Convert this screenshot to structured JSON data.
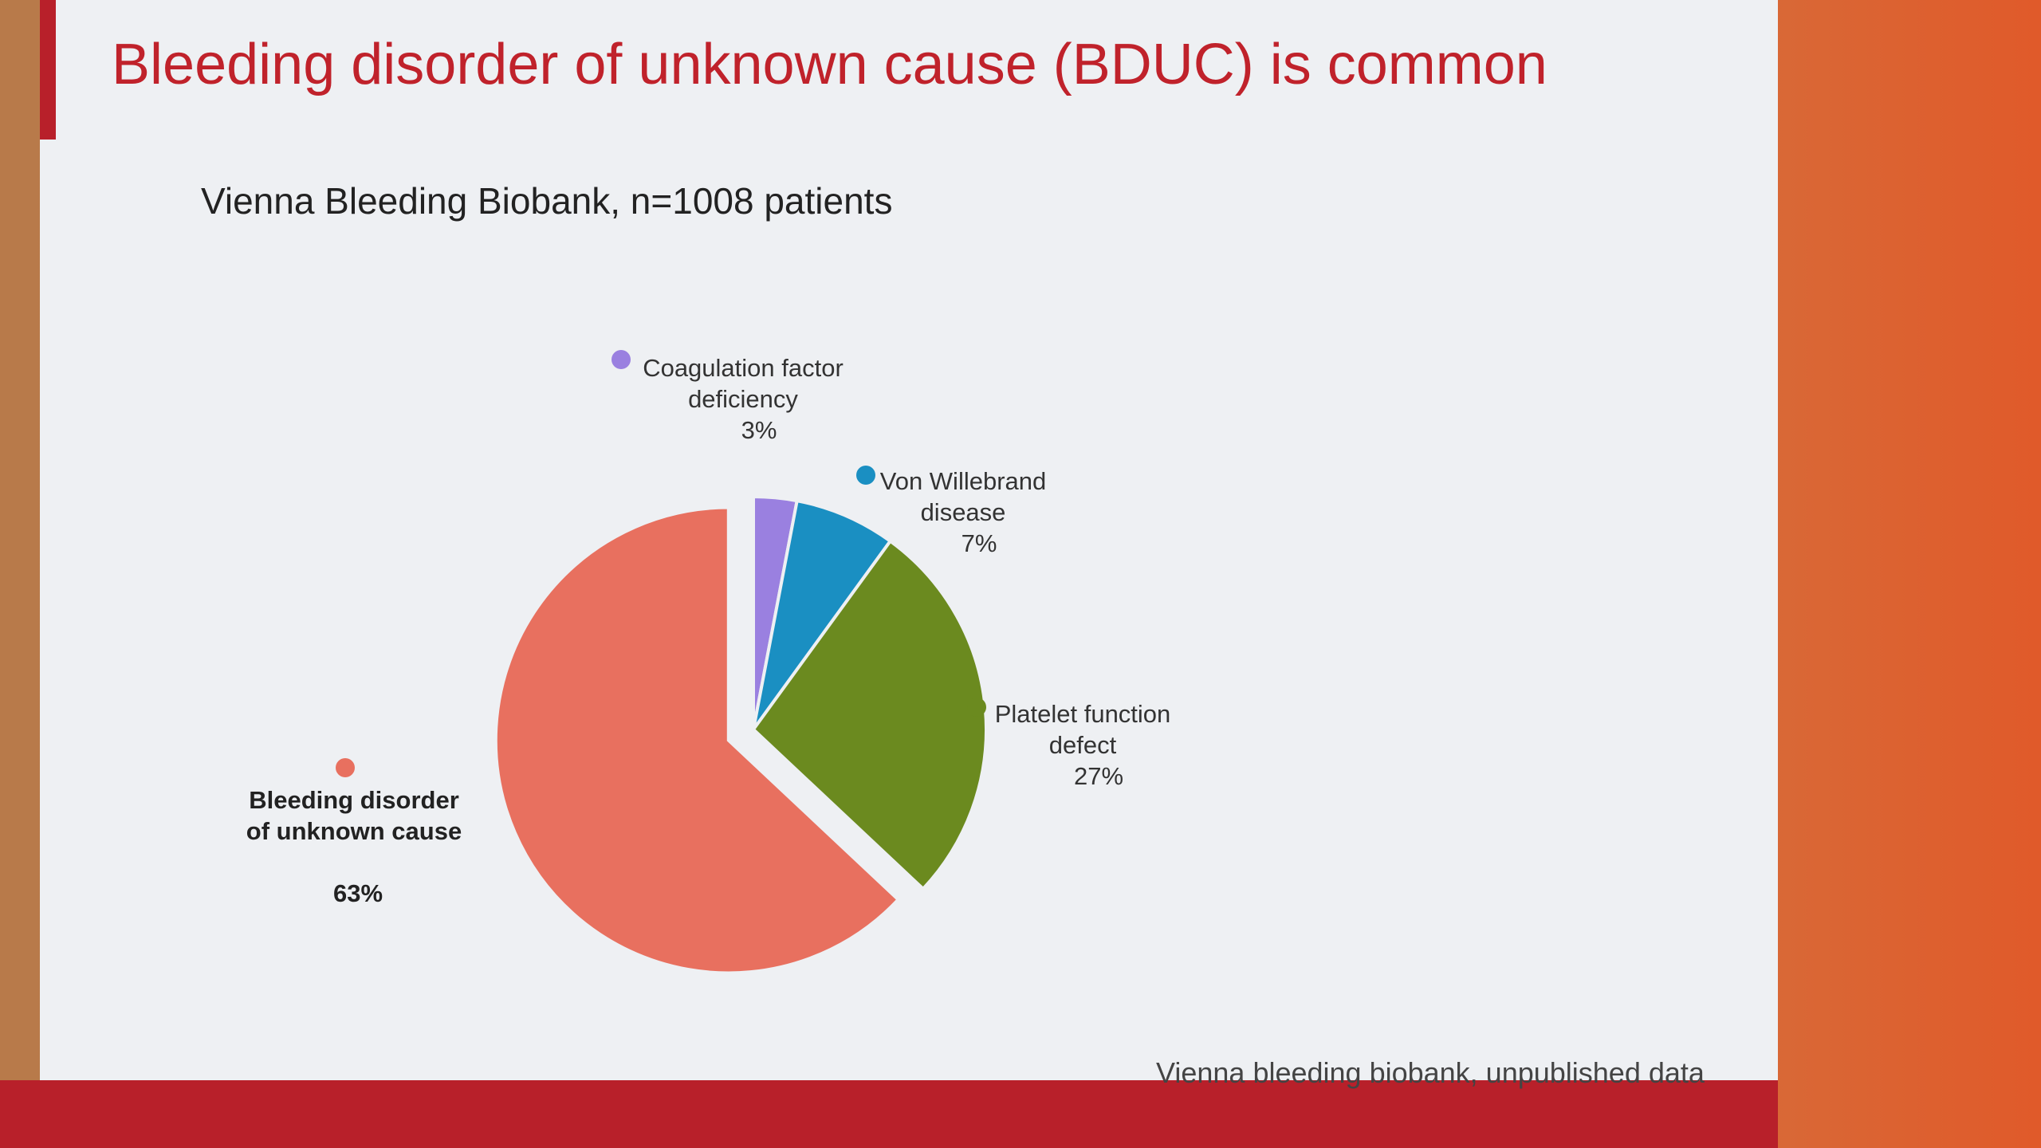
{
  "chart_data": {
    "type": "pie",
    "title": "Bleeding disorder of unknown cause (BDUC) is common",
    "subtitle": "Vienna Bleeding Biobank, n=1008 patients",
    "categories": [
      "Coagulation factor deficiency",
      "Von Willebrand disease",
      "Platelet function defect",
      "Bleeding disorder of unknown cause"
    ],
    "values": [
      3,
      7,
      27,
      63
    ],
    "value_labels": [
      "3%",
      "7%",
      "27%",
      "63%"
    ],
    "colors": [
      "#9a80e0",
      "#1a8fc2",
      "#6b8a1f",
      "#e8705f"
    ],
    "exploded": [
      false,
      false,
      false,
      true
    ],
    "source": "Vienna bleeding biobank, unpublished data"
  }
}
